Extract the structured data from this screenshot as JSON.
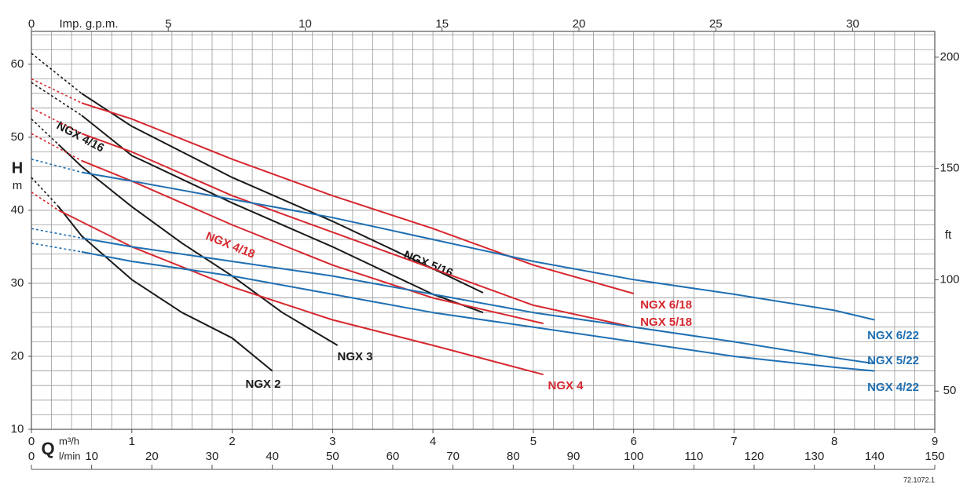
{
  "chart_data": {
    "type": "line",
    "x_label": "Q",
    "x_unit": "m³/h",
    "x3_unit": "l/min",
    "x2_label": "Imp. g.p.m.",
    "y_label": "H",
    "y_unit": "m",
    "y2_label": "ft",
    "code": "72.1072.1",
    "xlim": [
      0,
      9
    ],
    "xticks": [
      0,
      1,
      2,
      3,
      4,
      5,
      6,
      7,
      8,
      9
    ],
    "x2lim": [
      0,
      33.0
    ],
    "x2ticks": [
      0,
      5,
      10,
      15,
      20,
      25,
      30
    ],
    "x3lim": [
      0,
      150
    ],
    "x3ticks": [
      0,
      10,
      20,
      30,
      40,
      50,
      60,
      70,
      80,
      90,
      100,
      110,
      120,
      130,
      140,
      150
    ],
    "ylim": [
      10,
      64.5
    ],
    "yticks": [
      10,
      20,
      30,
      40,
      50,
      60
    ],
    "y2lim": [
      32.8,
      211.6
    ],
    "y2ticks": [
      50,
      100,
      150,
      200
    ],
    "grid": true,
    "minor_grid": {
      "x_step": 0.2,
      "y_step": 2
    },
    "series": [
      {
        "name": "NGX 2",
        "color": "#1a1a1a",
        "x": [
          0.27,
          0.5,
          1,
          1.5,
          2,
          2.4
        ],
        "values": [
          40.5,
          36.5,
          30.5,
          26,
          22.5,
          18
        ],
        "extension_x": [
          0,
          0.27
        ],
        "extension_values": [
          44.5,
          40.5
        ]
      },
      {
        "name": "NGX 3",
        "color": "#1a1a1a",
        "x": [
          0.27,
          0.5,
          1,
          1.5,
          2,
          2.5,
          3.05
        ],
        "values": [
          49,
          46,
          40.5,
          35.5,
          31,
          26,
          21.5
        ],
        "extension_x": [
          0,
          0.27
        ],
        "extension_values": [
          52.5,
          49
        ]
      },
      {
        "name": "NGX 4/16",
        "color": "#1a1a1a",
        "x": [
          0.5,
          1,
          2,
          3,
          4,
          4.5
        ],
        "values": [
          53,
          47.5,
          41,
          35,
          28.5,
          26
        ],
        "extension_x": [
          0,
          0.5
        ],
        "extension_values": [
          57.5,
          53
        ]
      },
      {
        "name": "NGX 5/16",
        "color": "#1a1a1a",
        "x": [
          0.5,
          1,
          2,
          3,
          4,
          4.5
        ],
        "values": [
          56,
          51.5,
          44.5,
          38.5,
          32,
          28.7
        ],
        "extension_x": [
          0,
          0.5
        ],
        "extension_values": [
          61.5,
          56
        ]
      },
      {
        "name": "NGX 4",
        "color": "#d7282f",
        "x": [
          0.27,
          1,
          2,
          3,
          4,
          5.1
        ],
        "values": [
          40,
          35,
          29.5,
          25,
          21.5,
          17.5
        ],
        "extension_x": [
          0,
          0.27
        ],
        "extension_values": [
          42.5,
          40
        ]
      },
      {
        "name": "NGX 4/18",
        "color": "#d7282f",
        "x": [
          0.5,
          1,
          2,
          3,
          4,
          5.1
        ],
        "values": [
          46.8,
          44,
          38,
          32.5,
          28,
          24.5
        ],
        "extension_x": [
          0,
          0.5
        ],
        "extension_values": [
          50.5,
          46.8
        ]
      },
      {
        "name": "NGX 5/18",
        "color": "#d7282f",
        "x": [
          0.5,
          1,
          2,
          3,
          4,
          5,
          6
        ],
        "values": [
          50.5,
          48,
          42,
          37,
          32,
          27,
          24
        ],
        "extension_x": [
          0,
          0.5
        ],
        "extension_values": [
          54,
          50.5
        ]
      },
      {
        "name": "NGX 6/18",
        "color": "#d7282f",
        "x": [
          0.5,
          1,
          2,
          3,
          4,
          5,
          6
        ],
        "values": [
          54.7,
          52.5,
          47,
          42,
          37.5,
          32.5,
          28.6
        ],
        "extension_x": [
          0,
          0.5
        ],
        "extension_values": [
          58,
          54.7
        ]
      },
      {
        "name": "NGX 4/22",
        "color": "#1f6fb2",
        "x": [
          0.5,
          1,
          2,
          3,
          4,
          5,
          6,
          7,
          8,
          8.4
        ],
        "values": [
          34.3,
          33,
          31,
          28.5,
          26,
          24,
          22,
          20,
          18.5,
          18
        ],
        "extension_x": [
          0,
          0.5
        ],
        "extension_values": [
          35.5,
          34.3
        ]
      },
      {
        "name": "NGX 5/22",
        "color": "#1f6fb2",
        "x": [
          0.5,
          1,
          2,
          3,
          4,
          5,
          6,
          7,
          8,
          8.4
        ],
        "values": [
          36.2,
          35,
          33,
          31,
          28.5,
          26,
          24,
          22,
          19.8,
          19
        ],
        "extension_x": [
          0,
          0.5
        ],
        "extension_values": [
          37.5,
          36.2
        ]
      },
      {
        "name": "NGX 6/22",
        "color": "#1f6fb2",
        "x": [
          0.5,
          1,
          2,
          3,
          4,
          5,
          6,
          7,
          8,
          8.4
        ],
        "values": [
          45.2,
          44,
          41.5,
          39,
          36,
          33,
          30.5,
          28.5,
          26.3,
          25
        ],
        "extension_x": [
          0,
          0.5
        ],
        "extension_values": [
          47,
          45.2
        ]
      }
    ]
  }
}
